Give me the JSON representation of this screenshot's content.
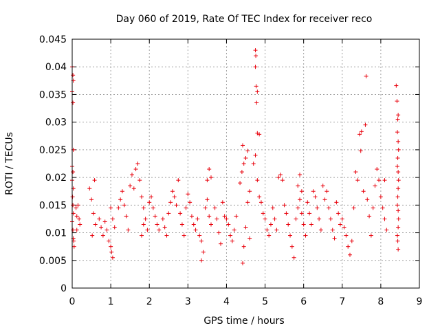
{
  "chart_data": {
    "type": "scatter",
    "title": "Day 060 of 2019, Rate Of TEC Index for receiver reco",
    "xlabel": "GPS time / hours",
    "ylabel": "ROTI / TECUs",
    "xlim": [
      0,
      9
    ],
    "ylim": [
      0,
      0.045
    ],
    "x_ticks": [
      0,
      1,
      2,
      3,
      4,
      5,
      6,
      7,
      8,
      9
    ],
    "x_tick_labels": [
      "0",
      "1",
      "2",
      "3",
      "4",
      "5",
      "6",
      "7",
      "8",
      "9"
    ],
    "y_ticks": [
      0,
      0.005,
      0.01,
      0.015,
      0.02,
      0.025,
      0.03,
      0.035,
      0.04,
      0.045
    ],
    "y_tick_labels": [
      "0",
      "0.005",
      "0.01",
      "0.015",
      "0.02",
      "0.025",
      "0.03",
      "0.035",
      "0.04",
      "0.045"
    ],
    "grid": true,
    "marker": "+",
    "color": "#e8000b",
    "series": [
      {
        "name": "ROTI",
        "points": [
          [
            0.0,
            0.04
          ],
          [
            0.02,
            0.0385
          ],
          [
            0.03,
            0.0375
          ],
          [
            0.0,
            0.0355
          ],
          [
            0.02,
            0.0335
          ],
          [
            0.03,
            0.025
          ],
          [
            0.0,
            0.022
          ],
          [
            0.02,
            0.021
          ],
          [
            0.0,
            0.0195
          ],
          [
            0.03,
            0.018
          ],
          [
            0.01,
            0.0165
          ],
          [
            0.02,
            0.015
          ],
          [
            0.03,
            0.0135
          ],
          [
            0.0,
            0.012
          ],
          [
            0.02,
            0.0105
          ],
          [
            0.03,
            0.009
          ],
          [
            0.04,
            0.0085
          ],
          [
            0.05,
            0.0075
          ],
          [
            0.1,
            0.0145
          ],
          [
            0.12,
            0.013
          ],
          [
            0.15,
            0.015
          ],
          [
            0.18,
            0.0125
          ],
          [
            0.2,
            0.0115
          ],
          [
            0.12,
            0.0105
          ],
          [
            0.45,
            0.018
          ],
          [
            0.5,
            0.016
          ],
          [
            0.55,
            0.0135
          ],
          [
            0.6,
            0.0115
          ],
          [
            0.52,
            0.0095
          ],
          [
            0.58,
            0.0195
          ],
          [
            0.7,
            0.0125
          ],
          [
            0.75,
            0.011
          ],
          [
            0.8,
            0.0095
          ],
          [
            0.85,
            0.012
          ],
          [
            0.9,
            0.0105
          ],
          [
            0.95,
            0.0085
          ],
          [
            1.0,
            0.0145
          ],
          [
            1.05,
            0.0125
          ],
          [
            1.0,
            0.0075
          ],
          [
            1.02,
            0.0065
          ],
          [
            1.05,
            0.0055
          ],
          [
            1.1,
            0.011
          ],
          [
            1.2,
            0.0145
          ],
          [
            1.25,
            0.016
          ],
          [
            1.3,
            0.0175
          ],
          [
            1.35,
            0.015
          ],
          [
            1.4,
            0.013
          ],
          [
            1.45,
            0.0105
          ],
          [
            1.5,
            0.0185
          ],
          [
            1.55,
            0.0205
          ],
          [
            1.6,
            0.018
          ],
          [
            1.65,
            0.0215
          ],
          [
            1.7,
            0.0225
          ],
          [
            1.75,
            0.0195
          ],
          [
            1.8,
            0.0165
          ],
          [
            1.85,
            0.0145
          ],
          [
            1.9,
            0.0125
          ],
          [
            1.95,
            0.0105
          ],
          [
            1.8,
            0.0095
          ],
          [
            1.85,
            0.0115
          ],
          [
            2.0,
            0.0155
          ],
          [
            2.05,
            0.0165
          ],
          [
            2.1,
            0.0145
          ],
          [
            2.15,
            0.013
          ],
          [
            2.2,
            0.0115
          ],
          [
            2.25,
            0.0105
          ],
          [
            2.35,
            0.0125
          ],
          [
            2.4,
            0.011
          ],
          [
            2.45,
            0.0095
          ],
          [
            2.5,
            0.0135
          ],
          [
            2.55,
            0.0155
          ],
          [
            2.6,
            0.0175
          ],
          [
            2.65,
            0.0165
          ],
          [
            2.7,
            0.015
          ],
          [
            2.75,
            0.0195
          ],
          [
            2.8,
            0.0135
          ],
          [
            2.85,
            0.0115
          ],
          [
            2.9,
            0.0095
          ],
          [
            2.95,
            0.0145
          ],
          [
            3.0,
            0.017
          ],
          [
            3.05,
            0.0155
          ],
          [
            3.1,
            0.013
          ],
          [
            3.15,
            0.0115
          ],
          [
            3.2,
            0.0105
          ],
          [
            3.25,
            0.0125
          ],
          [
            3.3,
            0.0095
          ],
          [
            3.35,
            0.0085
          ],
          [
            3.4,
            0.0065
          ],
          [
            3.35,
            0.005
          ],
          [
            3.45,
            0.0145
          ],
          [
            3.5,
            0.016
          ],
          [
            3.55,
            0.013
          ],
          [
            3.6,
            0.0115
          ],
          [
            3.5,
            0.0195
          ],
          [
            3.55,
            0.0215
          ],
          [
            3.6,
            0.02
          ],
          [
            3.7,
            0.0145
          ],
          [
            3.75,
            0.0125
          ],
          [
            3.8,
            0.01
          ],
          [
            3.85,
            0.008
          ],
          [
            3.9,
            0.0155
          ],
          [
            3.95,
            0.013
          ],
          [
            4.0,
            0.0125
          ],
          [
            4.05,
            0.0115
          ],
          [
            4.1,
            0.0095
          ],
          [
            4.15,
            0.0085
          ],
          [
            4.2,
            0.0105
          ],
          [
            4.25,
            0.013
          ],
          [
            4.35,
            0.019
          ],
          [
            4.4,
            0.021
          ],
          [
            4.45,
            0.0225
          ],
          [
            4.42,
            0.0258
          ],
          [
            4.5,
            0.0235
          ],
          [
            4.55,
            0.0248
          ],
          [
            4.6,
            0.0175
          ],
          [
            4.55,
            0.0155
          ],
          [
            4.5,
            0.011
          ],
          [
            4.45,
            0.0075
          ],
          [
            4.42,
            0.0045
          ],
          [
            4.6,
            0.009
          ],
          [
            4.7,
            0.0225
          ],
          [
            4.75,
            0.043
          ],
          [
            4.76,
            0.042
          ],
          [
            4.75,
            0.04
          ],
          [
            4.77,
            0.0365
          ],
          [
            4.8,
            0.0355
          ],
          [
            4.78,
            0.0335
          ],
          [
            4.8,
            0.028
          ],
          [
            4.85,
            0.0278
          ],
          [
            4.75,
            0.024
          ],
          [
            4.8,
            0.0195
          ],
          [
            4.85,
            0.0165
          ],
          [
            4.9,
            0.0155
          ],
          [
            4.95,
            0.0135
          ],
          [
            5.0,
            0.0125
          ],
          [
            5.05,
            0.0105
          ],
          [
            5.1,
            0.0095
          ],
          [
            5.15,
            0.0115
          ],
          [
            5.2,
            0.0145
          ],
          [
            5.25,
            0.0125
          ],
          [
            5.3,
            0.0105
          ],
          [
            5.35,
            0.02
          ],
          [
            5.4,
            0.0205
          ],
          [
            5.45,
            0.0195
          ],
          [
            5.5,
            0.015
          ],
          [
            5.55,
            0.0135
          ],
          [
            5.6,
            0.0115
          ],
          [
            5.65,
            0.0095
          ],
          [
            5.7,
            0.0075
          ],
          [
            5.75,
            0.0055
          ],
          [
            5.8,
            0.0125
          ],
          [
            5.85,
            0.0145
          ],
          [
            5.9,
            0.016
          ],
          [
            5.95,
            0.0135
          ],
          [
            6.0,
            0.0115
          ],
          [
            6.05,
            0.0095
          ],
          [
            5.85,
            0.0185
          ],
          [
            5.9,
            0.0205
          ],
          [
            5.95,
            0.0175
          ],
          [
            6.1,
            0.0155
          ],
          [
            6.15,
            0.0135
          ],
          [
            6.2,
            0.0115
          ],
          [
            6.25,
            0.0175
          ],
          [
            6.3,
            0.0165
          ],
          [
            6.35,
            0.0145
          ],
          [
            6.4,
            0.0125
          ],
          [
            6.45,
            0.0105
          ],
          [
            6.5,
            0.0185
          ],
          [
            6.55,
            0.016
          ],
          [
            6.6,
            0.0175
          ],
          [
            6.65,
            0.0145
          ],
          [
            6.7,
            0.0125
          ],
          [
            6.75,
            0.0105
          ],
          [
            6.8,
            0.009
          ],
          [
            6.85,
            0.0155
          ],
          [
            6.9,
            0.0135
          ],
          [
            6.95,
            0.0115
          ],
          [
            7.0,
            0.0125
          ],
          [
            7.05,
            0.011
          ],
          [
            7.1,
            0.0095
          ],
          [
            7.15,
            0.0075
          ],
          [
            7.2,
            0.006
          ],
          [
            7.25,
            0.0085
          ],
          [
            7.3,
            0.0145
          ],
          [
            7.35,
            0.021
          ],
          [
            7.4,
            0.0195
          ],
          [
            7.45,
            0.0278
          ],
          [
            7.5,
            0.0283
          ],
          [
            7.48,
            0.0248
          ],
          [
            7.55,
            0.0175
          ],
          [
            7.6,
            0.0295
          ],
          [
            7.62,
            0.0383
          ],
          [
            7.65,
            0.016
          ],
          [
            7.7,
            0.013
          ],
          [
            7.75,
            0.0095
          ],
          [
            7.8,
            0.0145
          ],
          [
            7.85,
            0.0185
          ],
          [
            7.9,
            0.0215
          ],
          [
            7.95,
            0.0195
          ],
          [
            8.0,
            0.0165
          ],
          [
            8.05,
            0.0145
          ],
          [
            8.1,
            0.0125
          ],
          [
            8.15,
            0.0105
          ],
          [
            8.1,
            0.0195
          ],
          [
            8.4,
            0.0366
          ],
          [
            8.42,
            0.0338
          ],
          [
            8.45,
            0.0313
          ],
          [
            8.44,
            0.0305
          ],
          [
            8.43,
            0.0282
          ],
          [
            8.45,
            0.0265
          ],
          [
            8.46,
            0.025
          ],
          [
            8.44,
            0.0235
          ],
          [
            8.43,
            0.022
          ],
          [
            8.45,
            0.021
          ],
          [
            8.46,
            0.0195
          ],
          [
            8.45,
            0.018
          ],
          [
            8.44,
            0.0165
          ],
          [
            8.43,
            0.015
          ],
          [
            8.45,
            0.014
          ],
          [
            8.46,
            0.0125
          ],
          [
            8.45,
            0.011
          ],
          [
            8.43,
            0.0095
          ],
          [
            8.44,
            0.0085
          ],
          [
            8.45,
            0.007
          ]
        ]
      }
    ]
  }
}
